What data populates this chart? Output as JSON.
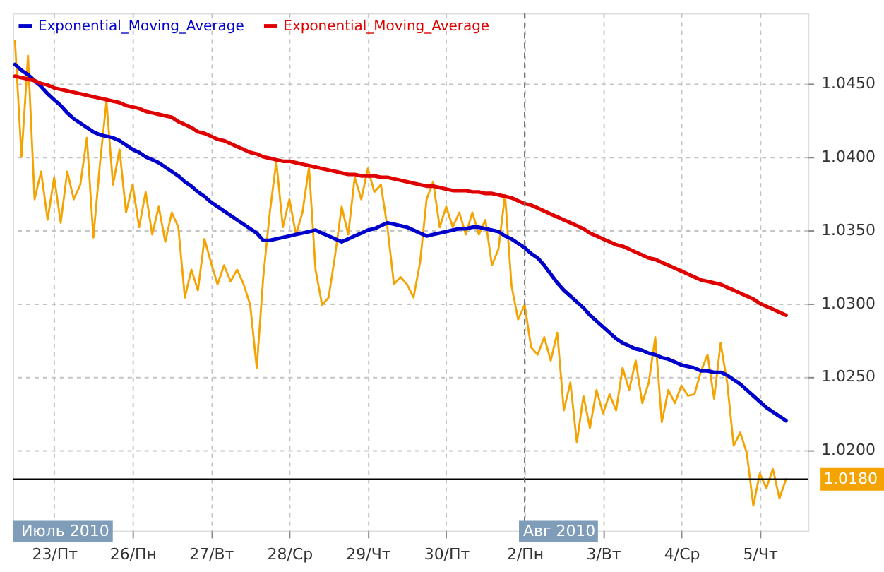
{
  "chart_data": {
    "type": "line",
    "legend": "top left",
    "grid": true,
    "categories": [
      null,
      null,
      null,
      null,
      null,
      null,
      "23/Пт",
      null,
      null,
      null,
      null,
      null,
      null,
      null,
      null,
      null,
      null,
      null,
      "26/Пн",
      null,
      null,
      null,
      null,
      null,
      null,
      null,
      null,
      null,
      null,
      null,
      "27/Вт",
      null,
      null,
      null,
      null,
      null,
      null,
      null,
      null,
      null,
      null,
      null,
      "28/Ср",
      null,
      null,
      null,
      null,
      null,
      null,
      null,
      null,
      null,
      null,
      null,
      "29/Чт",
      null,
      null,
      null,
      null,
      null,
      null,
      null,
      null,
      null,
      null,
      null,
      "30/Пт",
      null,
      null,
      null,
      null,
      null,
      null,
      null,
      null,
      null,
      null,
      null,
      "2/Пн",
      null,
      null,
      null,
      null,
      null,
      null,
      null,
      null,
      null,
      null,
      null,
      "3/Вт",
      null,
      null,
      null,
      null,
      null,
      null,
      null,
      null,
      null,
      null,
      null,
      "4/Ср",
      null,
      null,
      null,
      null,
      null,
      null,
      null,
      null,
      null,
      null,
      null,
      "5/Чт",
      null,
      null,
      null,
      null,
      null,
      null,
      null
    ],
    "ylim": [
      1.0145,
      1.0498
    ],
    "yticks": [
      {
        "value": 1.02,
        "label": "1.0200"
      },
      {
        "value": 1.025,
        "label": "1.0250"
      },
      {
        "value": 1.03,
        "label": "1.0300"
      },
      {
        "value": 1.035,
        "label": "1.0350"
      },
      {
        "value": 1.04,
        "label": "1.0400"
      },
      {
        "value": 1.045,
        "label": "1.0450"
      }
    ],
    "series": [
      {
        "color": "#f5a300",
        "values": [
          1.0479,
          1.04,
          1.0469,
          1.0371,
          1.039,
          1.0357,
          1.0386,
          1.0355,
          1.039,
          1.0371,
          1.0381,
          1.0413,
          1.0345,
          1.0395,
          1.0438,
          1.0381,
          1.0405,
          1.0362,
          1.0381,
          1.0352,
          1.0376,
          1.0347,
          1.0366,
          1.0342,
          1.0362,
          1.0352,
          1.0304,
          1.0323,
          1.0309,
          1.0344,
          1.0328,
          1.0313,
          1.0326,
          1.0315,
          1.0323,
          1.0313,
          1.0299,
          1.0256,
          1.0318,
          1.0362,
          1.0397,
          1.0352,
          1.0371,
          1.0347,
          1.0362,
          1.0393,
          1.0323,
          1.0299,
          1.0304,
          1.0333,
          1.0366,
          1.0347,
          1.0386,
          1.0371,
          1.0392,
          1.0376,
          1.0381,
          1.0352,
          1.0313,
          1.0318,
          1.0313,
          1.0304,
          1.0328,
          1.0371,
          1.0383,
          1.0352,
          1.0366,
          1.0352,
          1.0362,
          1.0347,
          1.0362,
          1.0347,
          1.0357,
          1.0326,
          1.0337,
          1.0374,
          1.0312,
          1.0289,
          1.0299,
          1.027,
          1.0265,
          1.0277,
          1.0261,
          1.028,
          1.0227,
          1.0246,
          1.0205,
          1.0237,
          1.0215,
          1.0241,
          1.0225,
          1.0238,
          1.0227,
          1.0256,
          1.0241,
          1.0261,
          1.0232,
          1.0246,
          1.0277,
          1.0219,
          1.0241,
          1.0232,
          1.0244,
          1.0237,
          1.0238,
          1.0254,
          1.0265,
          1.0235,
          1.0273,
          1.0246,
          1.0203,
          1.0212,
          1.0198,
          1.0162,
          1.0184,
          1.0174,
          1.0187,
          1.0167,
          1.018,
          null,
          null,
          null
        ]
      },
      {
        "name": "Exponential_Moving_Average",
        "color": "#0000cc",
        "values": [
          1.0463,
          1.0459,
          1.0456,
          1.0452,
          1.0448,
          1.0443,
          1.0439,
          1.0435,
          1.043,
          1.0426,
          1.0423,
          1.042,
          1.0417,
          1.0415,
          1.0414,
          1.0413,
          1.0411,
          1.0408,
          1.0405,
          1.0403,
          1.04,
          1.0398,
          1.0396,
          1.0393,
          1.039,
          1.0387,
          1.0383,
          1.038,
          1.0376,
          1.0373,
          1.0369,
          1.0366,
          1.0363,
          1.036,
          1.0357,
          1.0354,
          1.0351,
          1.0348,
          1.0343,
          1.0343,
          1.0344,
          1.0345,
          1.0346,
          1.0347,
          1.0348,
          1.0349,
          1.035,
          1.0348,
          1.0346,
          1.0344,
          1.0342,
          1.0344,
          1.0346,
          1.0348,
          1.035,
          1.0351,
          1.0353,
          1.0355,
          1.0354,
          1.0353,
          1.0352,
          1.035,
          1.0348,
          1.0346,
          1.0347,
          1.0348,
          1.0349,
          1.035,
          1.0351,
          1.0351,
          1.0352,
          1.0352,
          1.0351,
          1.035,
          1.0349,
          1.0346,
          1.0344,
          1.0341,
          1.0338,
          1.0334,
          1.0331,
          1.0326,
          1.032,
          1.0314,
          1.0309,
          1.0305,
          1.0301,
          1.0297,
          1.0292,
          1.0288,
          1.0284,
          1.028,
          1.0276,
          1.0273,
          1.0271,
          1.0269,
          1.0268,
          1.0266,
          1.0265,
          1.0263,
          1.0262,
          1.026,
          1.0258,
          1.0257,
          1.0256,
          1.0254,
          1.0254,
          1.0253,
          1.0253,
          1.0251,
          1.0248,
          1.0245,
          1.0241,
          1.0237,
          1.0233,
          1.0229,
          1.0226,
          1.0223,
          1.022,
          null,
          null,
          null
        ]
      },
      {
        "name": "Exponential_Moving_Average",
        "color": "#e00000",
        "values": [
          1.0455,
          1.0454,
          1.0453,
          1.0452,
          1.045,
          1.0449,
          1.0447,
          1.0446,
          1.0445,
          1.0444,
          1.0443,
          1.0442,
          1.0441,
          1.044,
          1.0439,
          1.0438,
          1.0437,
          1.0435,
          1.0434,
          1.0433,
          1.0431,
          1.043,
          1.0429,
          1.0428,
          1.0427,
          1.0424,
          1.0422,
          1.042,
          1.0417,
          1.0416,
          1.0414,
          1.0412,
          1.0411,
          1.0409,
          1.0407,
          1.0405,
          1.0403,
          1.0402,
          1.04,
          1.0399,
          1.0398,
          1.0397,
          1.0397,
          1.0396,
          1.0395,
          1.0394,
          1.0393,
          1.0392,
          1.0391,
          1.039,
          1.0389,
          1.0388,
          1.0388,
          1.0387,
          1.0387,
          1.0387,
          1.0386,
          1.0386,
          1.0385,
          1.0384,
          1.0383,
          1.0382,
          1.0381,
          1.038,
          1.038,
          1.0379,
          1.0378,
          1.0377,
          1.0377,
          1.0377,
          1.0376,
          1.0376,
          1.0375,
          1.0375,
          1.0374,
          1.0373,
          1.0372,
          1.037,
          1.0368,
          1.0367,
          1.0365,
          1.0363,
          1.0361,
          1.0359,
          1.0357,
          1.0355,
          1.0353,
          1.0351,
          1.0348,
          1.0346,
          1.0344,
          1.0342,
          1.034,
          1.0339,
          1.0337,
          1.0335,
          1.0333,
          1.0331,
          1.033,
          1.0328,
          1.0326,
          1.0324,
          1.0322,
          1.032,
          1.0318,
          1.0316,
          1.0315,
          1.0314,
          1.0313,
          1.0311,
          1.0309,
          1.0307,
          1.0305,
          1.0303,
          1.03,
          1.0298,
          1.0296,
          1.0294,
          1.0292,
          null,
          null,
          null
        ]
      }
    ],
    "ref_lines": [
      {
        "axis": "y",
        "value": 1.018,
        "label": "1.0180",
        "color": "#000000"
      },
      {
        "axis": "x",
        "value": "2/Пн",
        "label": "Авг 2010",
        "color": "#777777",
        "line_style": "dashed"
      }
    ],
    "annotations": [
      "Июль 2010"
    ]
  }
}
